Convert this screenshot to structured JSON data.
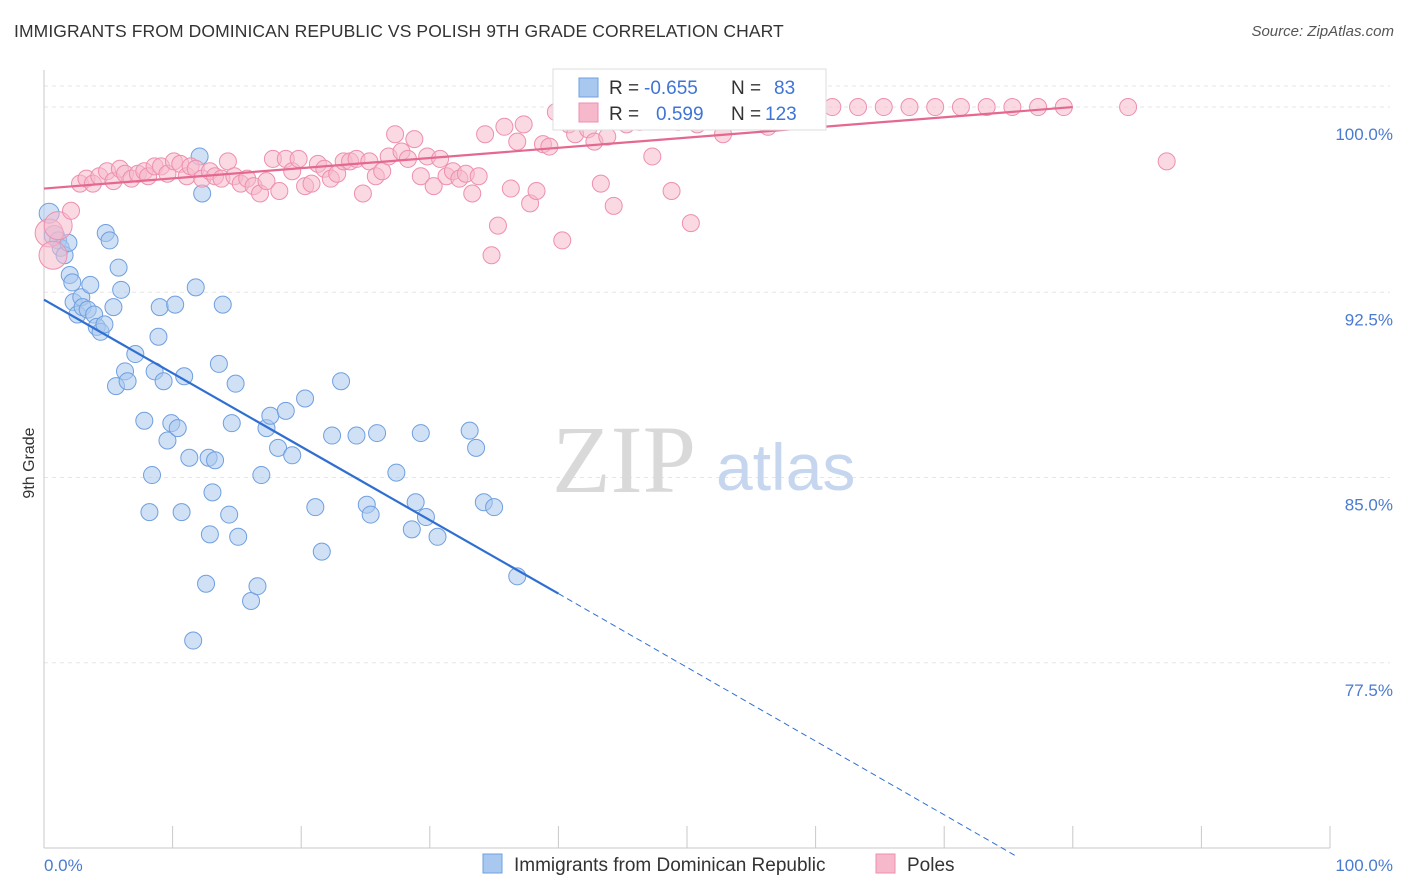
{
  "title": "IMMIGRANTS FROM DOMINICAN REPUBLIC VS POLISH 9TH GRADE CORRELATION CHART",
  "source": "Source: ZipAtlas.com",
  "watermark": {
    "part1": "ZIP",
    "part2": "atlas"
  },
  "colors": {
    "blue_fill": "#a9c8ef",
    "blue_stroke": "#6f9fe0",
    "blue_line": "#2f6fd1",
    "pink_fill": "#f6b9cc",
    "pink_stroke": "#ee8fae",
    "pink_line": "#e4688f",
    "tick_text": "#4a7bd0",
    "grid": "#e6e6e6"
  },
  "chart_data": {
    "type": "scatter",
    "title": "IMMIGRANTS FROM DOMINICAN REPUBLIC VS POLISH 9TH GRADE CORRELATION CHART",
    "xlabel": "",
    "ylabel": "9th Grade",
    "xlim": [
      0,
      100
    ],
    "ylim": [
      70.0,
      101.5
    ],
    "x_tick_labels": [
      "0.0%",
      "100.0%"
    ],
    "y_ticks": [
      77.5,
      85.0,
      92.5,
      100.0
    ],
    "y_tick_labels": [
      "77.5%",
      "85.0%",
      "92.5%",
      "100.0%"
    ],
    "grid": true,
    "legend_position": "top-center",
    "stats": [
      {
        "r_label": "R =",
        "r_value": "-0.655",
        "n_label": "N =",
        "n_value": "83"
      },
      {
        "r_label": "R =",
        "r_value": "0.599",
        "n_label": "N =",
        "n_value": "123"
      }
    ],
    "series": [
      {
        "name": "Immigrants from Dominican Republic",
        "color": "blue",
        "trend": {
          "x0": 0,
          "y0": 92.2,
          "x1": 40,
          "y1": 80.3,
          "dash_to_x": 75.5,
          "dash_to_y": 69.7
        },
        "points": [
          [
            0.4,
            95.7
          ],
          [
            0.8,
            94.8
          ],
          [
            1.1,
            94.6
          ],
          [
            1.3,
            94.3
          ],
          [
            1.6,
            94.0
          ],
          [
            1.9,
            94.5
          ],
          [
            2.0,
            93.2
          ],
          [
            2.2,
            92.9
          ],
          [
            2.3,
            92.1
          ],
          [
            2.6,
            91.6
          ],
          [
            2.9,
            92.3
          ],
          [
            3.0,
            91.9
          ],
          [
            3.4,
            91.8
          ],
          [
            3.6,
            92.8
          ],
          [
            3.9,
            91.6
          ],
          [
            4.1,
            91.1
          ],
          [
            4.4,
            90.9
          ],
          [
            4.7,
            91.2
          ],
          [
            4.8,
            94.9
          ],
          [
            5.1,
            94.6
          ],
          [
            5.4,
            91.9
          ],
          [
            5.8,
            93.5
          ],
          [
            6.0,
            92.6
          ],
          [
            5.6,
            88.7
          ],
          [
            6.3,
            89.3
          ],
          [
            6.5,
            88.9
          ],
          [
            7.1,
            90.0
          ],
          [
            7.8,
            87.3
          ],
          [
            8.2,
            83.6
          ],
          [
            8.4,
            85.1
          ],
          [
            8.6,
            89.3
          ],
          [
            8.9,
            90.7
          ],
          [
            9.0,
            91.9
          ],
          [
            9.3,
            88.9
          ],
          [
            9.6,
            86.5
          ],
          [
            9.9,
            87.2
          ],
          [
            10.2,
            92.0
          ],
          [
            10.4,
            87.0
          ],
          [
            10.9,
            89.1
          ],
          [
            10.7,
            83.6
          ],
          [
            11.3,
            85.8
          ],
          [
            11.6,
            78.4
          ],
          [
            11.8,
            92.7
          ],
          [
            12.1,
            98.0
          ],
          [
            12.3,
            96.5
          ],
          [
            12.6,
            80.7
          ],
          [
            12.8,
            85.8
          ],
          [
            12.9,
            82.7
          ],
          [
            13.1,
            84.4
          ],
          [
            13.3,
            85.7
          ],
          [
            13.6,
            89.6
          ],
          [
            13.9,
            92.0
          ],
          [
            14.4,
            83.5
          ],
          [
            14.6,
            87.2
          ],
          [
            14.9,
            88.8
          ],
          [
            15.1,
            82.6
          ],
          [
            16.1,
            80.0
          ],
          [
            16.6,
            80.6
          ],
          [
            16.9,
            85.1
          ],
          [
            17.3,
            87.0
          ],
          [
            17.6,
            87.5
          ],
          [
            18.2,
            86.2
          ],
          [
            18.8,
            87.7
          ],
          [
            19.3,
            85.9
          ],
          [
            20.3,
            88.2
          ],
          [
            21.1,
            83.8
          ],
          [
            21.6,
            82.0
          ],
          [
            22.4,
            86.7
          ],
          [
            23.1,
            88.9
          ],
          [
            24.3,
            86.7
          ],
          [
            25.1,
            83.9
          ],
          [
            25.4,
            83.5
          ],
          [
            25.9,
            86.8
          ],
          [
            27.4,
            85.2
          ],
          [
            28.6,
            82.9
          ],
          [
            28.9,
            84.0
          ],
          [
            29.3,
            86.8
          ],
          [
            29.7,
            83.4
          ],
          [
            30.6,
            82.6
          ],
          [
            33.1,
            86.9
          ],
          [
            33.6,
            86.2
          ],
          [
            34.2,
            84.0
          ],
          [
            35.0,
            83.8
          ]
        ],
        "extra_points": [
          [
            36.8,
            81.0
          ]
        ]
      },
      {
        "name": "Poles",
        "color": "pink",
        "trend": {
          "x0": 0,
          "y0": 96.7,
          "x1": 80,
          "y1": 100.0
        },
        "points": [
          [
            0.4,
            94.9
          ],
          [
            0.7,
            94.0
          ],
          [
            1.1,
            95.2
          ],
          [
            2.1,
            95.8
          ],
          [
            2.8,
            96.9
          ],
          [
            3.3,
            97.1
          ],
          [
            3.8,
            96.9
          ],
          [
            4.3,
            97.2
          ],
          [
            4.9,
            97.4
          ],
          [
            5.4,
            97.0
          ],
          [
            5.9,
            97.5
          ],
          [
            6.3,
            97.3
          ],
          [
            6.8,
            97.1
          ],
          [
            7.3,
            97.3
          ],
          [
            7.8,
            97.4
          ],
          [
            8.1,
            97.2
          ],
          [
            8.6,
            97.6
          ],
          [
            9.1,
            97.6
          ],
          [
            9.6,
            97.3
          ],
          [
            10.1,
            97.8
          ],
          [
            10.6,
            97.7
          ],
          [
            11.1,
            97.2
          ],
          [
            11.4,
            97.6
          ],
          [
            11.8,
            97.5
          ],
          [
            12.3,
            97.1
          ],
          [
            12.9,
            97.4
          ],
          [
            13.3,
            97.2
          ],
          [
            13.8,
            97.1
          ],
          [
            14.3,
            97.8
          ],
          [
            14.8,
            97.2
          ],
          [
            15.3,
            96.9
          ],
          [
            15.8,
            97.1
          ],
          [
            16.3,
            96.8
          ],
          [
            16.8,
            96.5
          ],
          [
            17.3,
            97.0
          ],
          [
            17.8,
            97.9
          ],
          [
            18.3,
            96.6
          ],
          [
            18.8,
            97.9
          ],
          [
            19.3,
            97.4
          ],
          [
            19.8,
            97.9
          ],
          [
            20.3,
            96.8
          ],
          [
            20.8,
            96.9
          ],
          [
            21.3,
            97.7
          ],
          [
            21.8,
            97.5
          ],
          [
            22.3,
            97.1
          ],
          [
            22.8,
            97.3
          ],
          [
            23.3,
            97.8
          ],
          [
            23.8,
            97.8
          ],
          [
            24.3,
            97.9
          ],
          [
            24.8,
            96.5
          ],
          [
            25.3,
            97.8
          ],
          [
            25.8,
            97.2
          ],
          [
            26.3,
            97.4
          ],
          [
            26.8,
            98.0
          ],
          [
            27.3,
            98.9
          ],
          [
            27.8,
            98.2
          ],
          [
            28.3,
            97.9
          ],
          [
            28.8,
            98.7
          ],
          [
            29.3,
            97.2
          ],
          [
            29.8,
            98.0
          ],
          [
            30.3,
            96.8
          ],
          [
            30.8,
            97.9
          ],
          [
            31.3,
            97.2
          ],
          [
            31.8,
            97.4
          ],
          [
            32.3,
            97.1
          ],
          [
            32.8,
            97.3
          ],
          [
            33.3,
            96.5
          ],
          [
            33.8,
            97.2
          ],
          [
            34.3,
            98.9
          ],
          [
            34.8,
            94.0
          ],
          [
            35.3,
            95.2
          ],
          [
            35.8,
            99.2
          ],
          [
            36.3,
            96.7
          ],
          [
            36.8,
            98.6
          ],
          [
            37.3,
            99.3
          ],
          [
            37.8,
            96.1
          ],
          [
            38.3,
            96.6
          ],
          [
            38.8,
            98.5
          ],
          [
            39.3,
            98.4
          ],
          [
            39.8,
            99.8
          ],
          [
            40.3,
            94.6
          ],
          [
            40.8,
            99.3
          ],
          [
            41.3,
            98.9
          ],
          [
            41.8,
            99.5
          ],
          [
            42.3,
            99.1
          ],
          [
            42.8,
            98.6
          ],
          [
            43.3,
            96.9
          ],
          [
            43.8,
            98.8
          ],
          [
            44.3,
            96.0
          ],
          [
            44.8,
            99.8
          ],
          [
            45.3,
            99.3
          ],
          [
            45.8,
            99.6
          ],
          [
            46.3,
            99.4
          ],
          [
            46.8,
            99.6
          ],
          [
            47.3,
            98.0
          ],
          [
            47.8,
            99.7
          ],
          [
            48.3,
            99.5
          ],
          [
            48.8,
            96.6
          ],
          [
            49.3,
            99.4
          ],
          [
            49.8,
            99.7
          ],
          [
            50.3,
            99.6
          ],
          [
            50.8,
            99.3
          ],
          [
            51.3,
            99.7
          ],
          [
            51.8,
            99.8
          ],
          [
            53.3,
            100.0
          ],
          [
            55.3,
            100.0
          ],
          [
            57.3,
            100.0
          ],
          [
            59.3,
            100.0
          ],
          [
            61.3,
            100.0
          ],
          [
            63.3,
            100.0
          ],
          [
            65.3,
            100.0
          ],
          [
            67.3,
            100.0
          ],
          [
            69.3,
            100.0
          ],
          [
            71.3,
            100.0
          ],
          [
            73.3,
            100.0
          ],
          [
            75.3,
            100.0
          ],
          [
            77.3,
            100.0
          ],
          [
            79.3,
            100.0
          ],
          [
            84.3,
            100.0
          ],
          [
            87.3,
            97.8
          ],
          [
            50.3,
            95.3
          ],
          [
            52.8,
            98.9
          ],
          [
            56.3,
            99.2
          ]
        ]
      }
    ]
  },
  "legend_bottom": [
    "Immigrants from Dominican Republic",
    "Poles"
  ]
}
